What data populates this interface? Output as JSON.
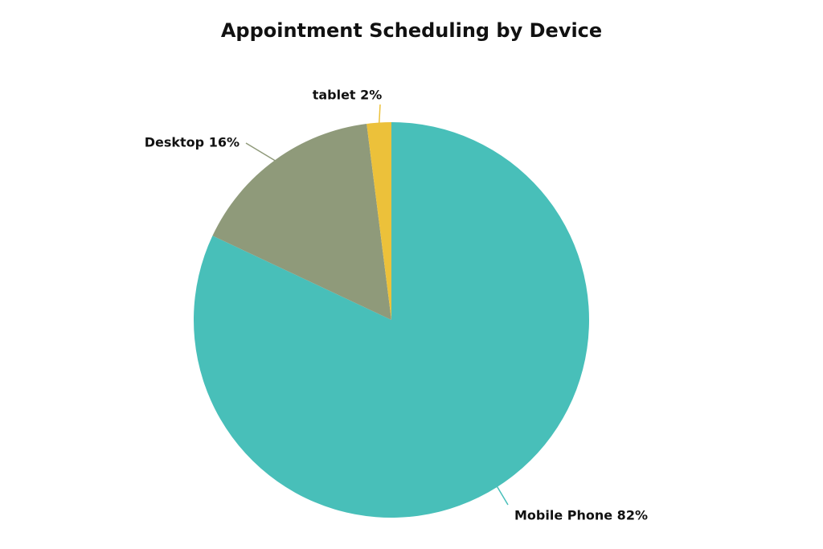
{
  "chart_data": {
    "type": "pie",
    "title": "Appointment Scheduling by Device",
    "slices": [
      {
        "label": "Mobile Phone",
        "value": 82,
        "display": "Mobile Phone 82%",
        "color": "#48bfb9"
      },
      {
        "label": "Desktop",
        "value": 16,
        "display": "Desktop 16%",
        "color": "#8f9a7a"
      },
      {
        "label": "tablet",
        "value": 2,
        "display": "tablet 2%",
        "color": "#ecc13a"
      }
    ],
    "start_angle": "12 o'clock",
    "direction": "clockwise",
    "legend": "none",
    "labels": "outside with leader lines"
  }
}
